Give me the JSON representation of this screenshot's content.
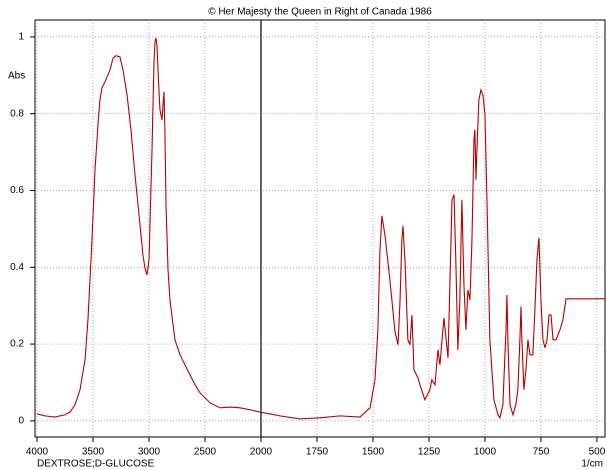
{
  "chart_data": {
    "type": "line",
    "title": "© Her Majesty the Queen in Right of Canada   1986",
    "y_label": "Abs",
    "x_label": "1/cm",
    "xlim": [
      4000,
      464
    ],
    "x_scale_break": 2000,
    "xticks": [
      4000,
      3500,
      3000,
      2500,
      2000,
      1750,
      1500,
      1250,
      1000,
      750,
      500
    ],
    "ylim": [
      -0.042,
      1.044
    ],
    "yticks": [
      0,
      0.2,
      0.4,
      0.6,
      0.8,
      1
    ],
    "grid": true,
    "x": [
      4000,
      3929,
      3839,
      3750,
      3705,
      3661,
      3616,
      3571,
      3545,
      3509,
      3482,
      3455,
      3438,
      3420,
      3393,
      3348,
      3321,
      3295,
      3259,
      3232,
      3196,
      3161,
      3125,
      3080,
      3054,
      3036,
      3018,
      3000,
      2973,
      2955,
      2946,
      2938,
      2929,
      2911,
      2902,
      2884,
      2866,
      2857,
      2848,
      2830,
      2813,
      2768,
      2723,
      2679,
      2634,
      2589,
      2545,
      2455,
      2366,
      2277,
      2188,
      2098,
      2009,
      1960,
      1915,
      1826,
      1737,
      1647,
      1558,
      1513,
      1491,
      1478,
      1469,
      1460,
      1446,
      1424,
      1402,
      1388,
      1379,
      1371,
      1366,
      1357,
      1344,
      1335,
      1326,
      1317,
      1299,
      1290,
      1268,
      1246,
      1237,
      1223,
      1210,
      1201,
      1183,
      1165,
      1156,
      1147,
      1138,
      1129,
      1121,
      1112,
      1103,
      1094,
      1085,
      1076,
      1067,
      1058,
      1049,
      1045,
      1040,
      1036,
      1027,
      1018,
      1009,
      1000,
      991,
      978,
      960,
      942,
      933,
      920,
      906,
      902,
      897,
      888,
      875,
      862,
      853,
      844,
      839,
      835,
      826,
      817,
      808,
      799,
      786,
      777,
      768,
      759,
      750,
      741,
      732,
      723,
      714,
      705,
      696,
      683,
      665,
      652,
      638,
      464
    ],
    "series": [
      {
        "name": "DEXTROSE;D-GLUCOSE",
        "color": "#b40000",
        "values": [
          0.018,
          0.013,
          0.01,
          0.016,
          0.023,
          0.042,
          0.081,
          0.159,
          0.263,
          0.471,
          0.654,
          0.773,
          0.836,
          0.867,
          0.883,
          0.914,
          0.945,
          0.951,
          0.948,
          0.914,
          0.849,
          0.758,
          0.641,
          0.51,
          0.432,
          0.398,
          0.38,
          0.419,
          0.706,
          0.94,
          0.987,
          0.997,
          0.979,
          0.862,
          0.81,
          0.784,
          0.857,
          0.745,
          0.562,
          0.393,
          0.315,
          0.211,
          0.172,
          0.146,
          0.12,
          0.094,
          0.073,
          0.047,
          0.034,
          0.036,
          0.034,
          0.029,
          0.023,
          0.018,
          0.013,
          0.005,
          0.008,
          0.013,
          0.01,
          0.034,
          0.107,
          0.237,
          0.443,
          0.534,
          0.482,
          0.365,
          0.234,
          0.198,
          0.315,
          0.471,
          0.508,
          0.417,
          0.211,
          0.198,
          0.276,
          0.133,
          0.112,
          0.094,
          0.055,
          0.081,
          0.107,
          0.094,
          0.185,
          0.146,
          0.268,
          0.164,
          0.367,
          0.576,
          0.589,
          0.393,
          0.185,
          0.315,
          0.576,
          0.357,
          0.237,
          0.341,
          0.315,
          0.471,
          0.732,
          0.758,
          0.628,
          0.706,
          0.836,
          0.862,
          0.849,
          0.797,
          0.576,
          0.211,
          0.055,
          0.016,
          0.008,
          0.042,
          0.237,
          0.328,
          0.198,
          0.042,
          0.016,
          0.042,
          0.081,
          0.211,
          0.297,
          0.211,
          0.081,
          0.133,
          0.211,
          0.172,
          0.172,
          0.289,
          0.419,
          0.477,
          0.315,
          0.211,
          0.19,
          0.211,
          0.276,
          0.276,
          0.211,
          0.211,
          0.237,
          0.263,
          0.318,
          0.318
        ]
      }
    ]
  }
}
